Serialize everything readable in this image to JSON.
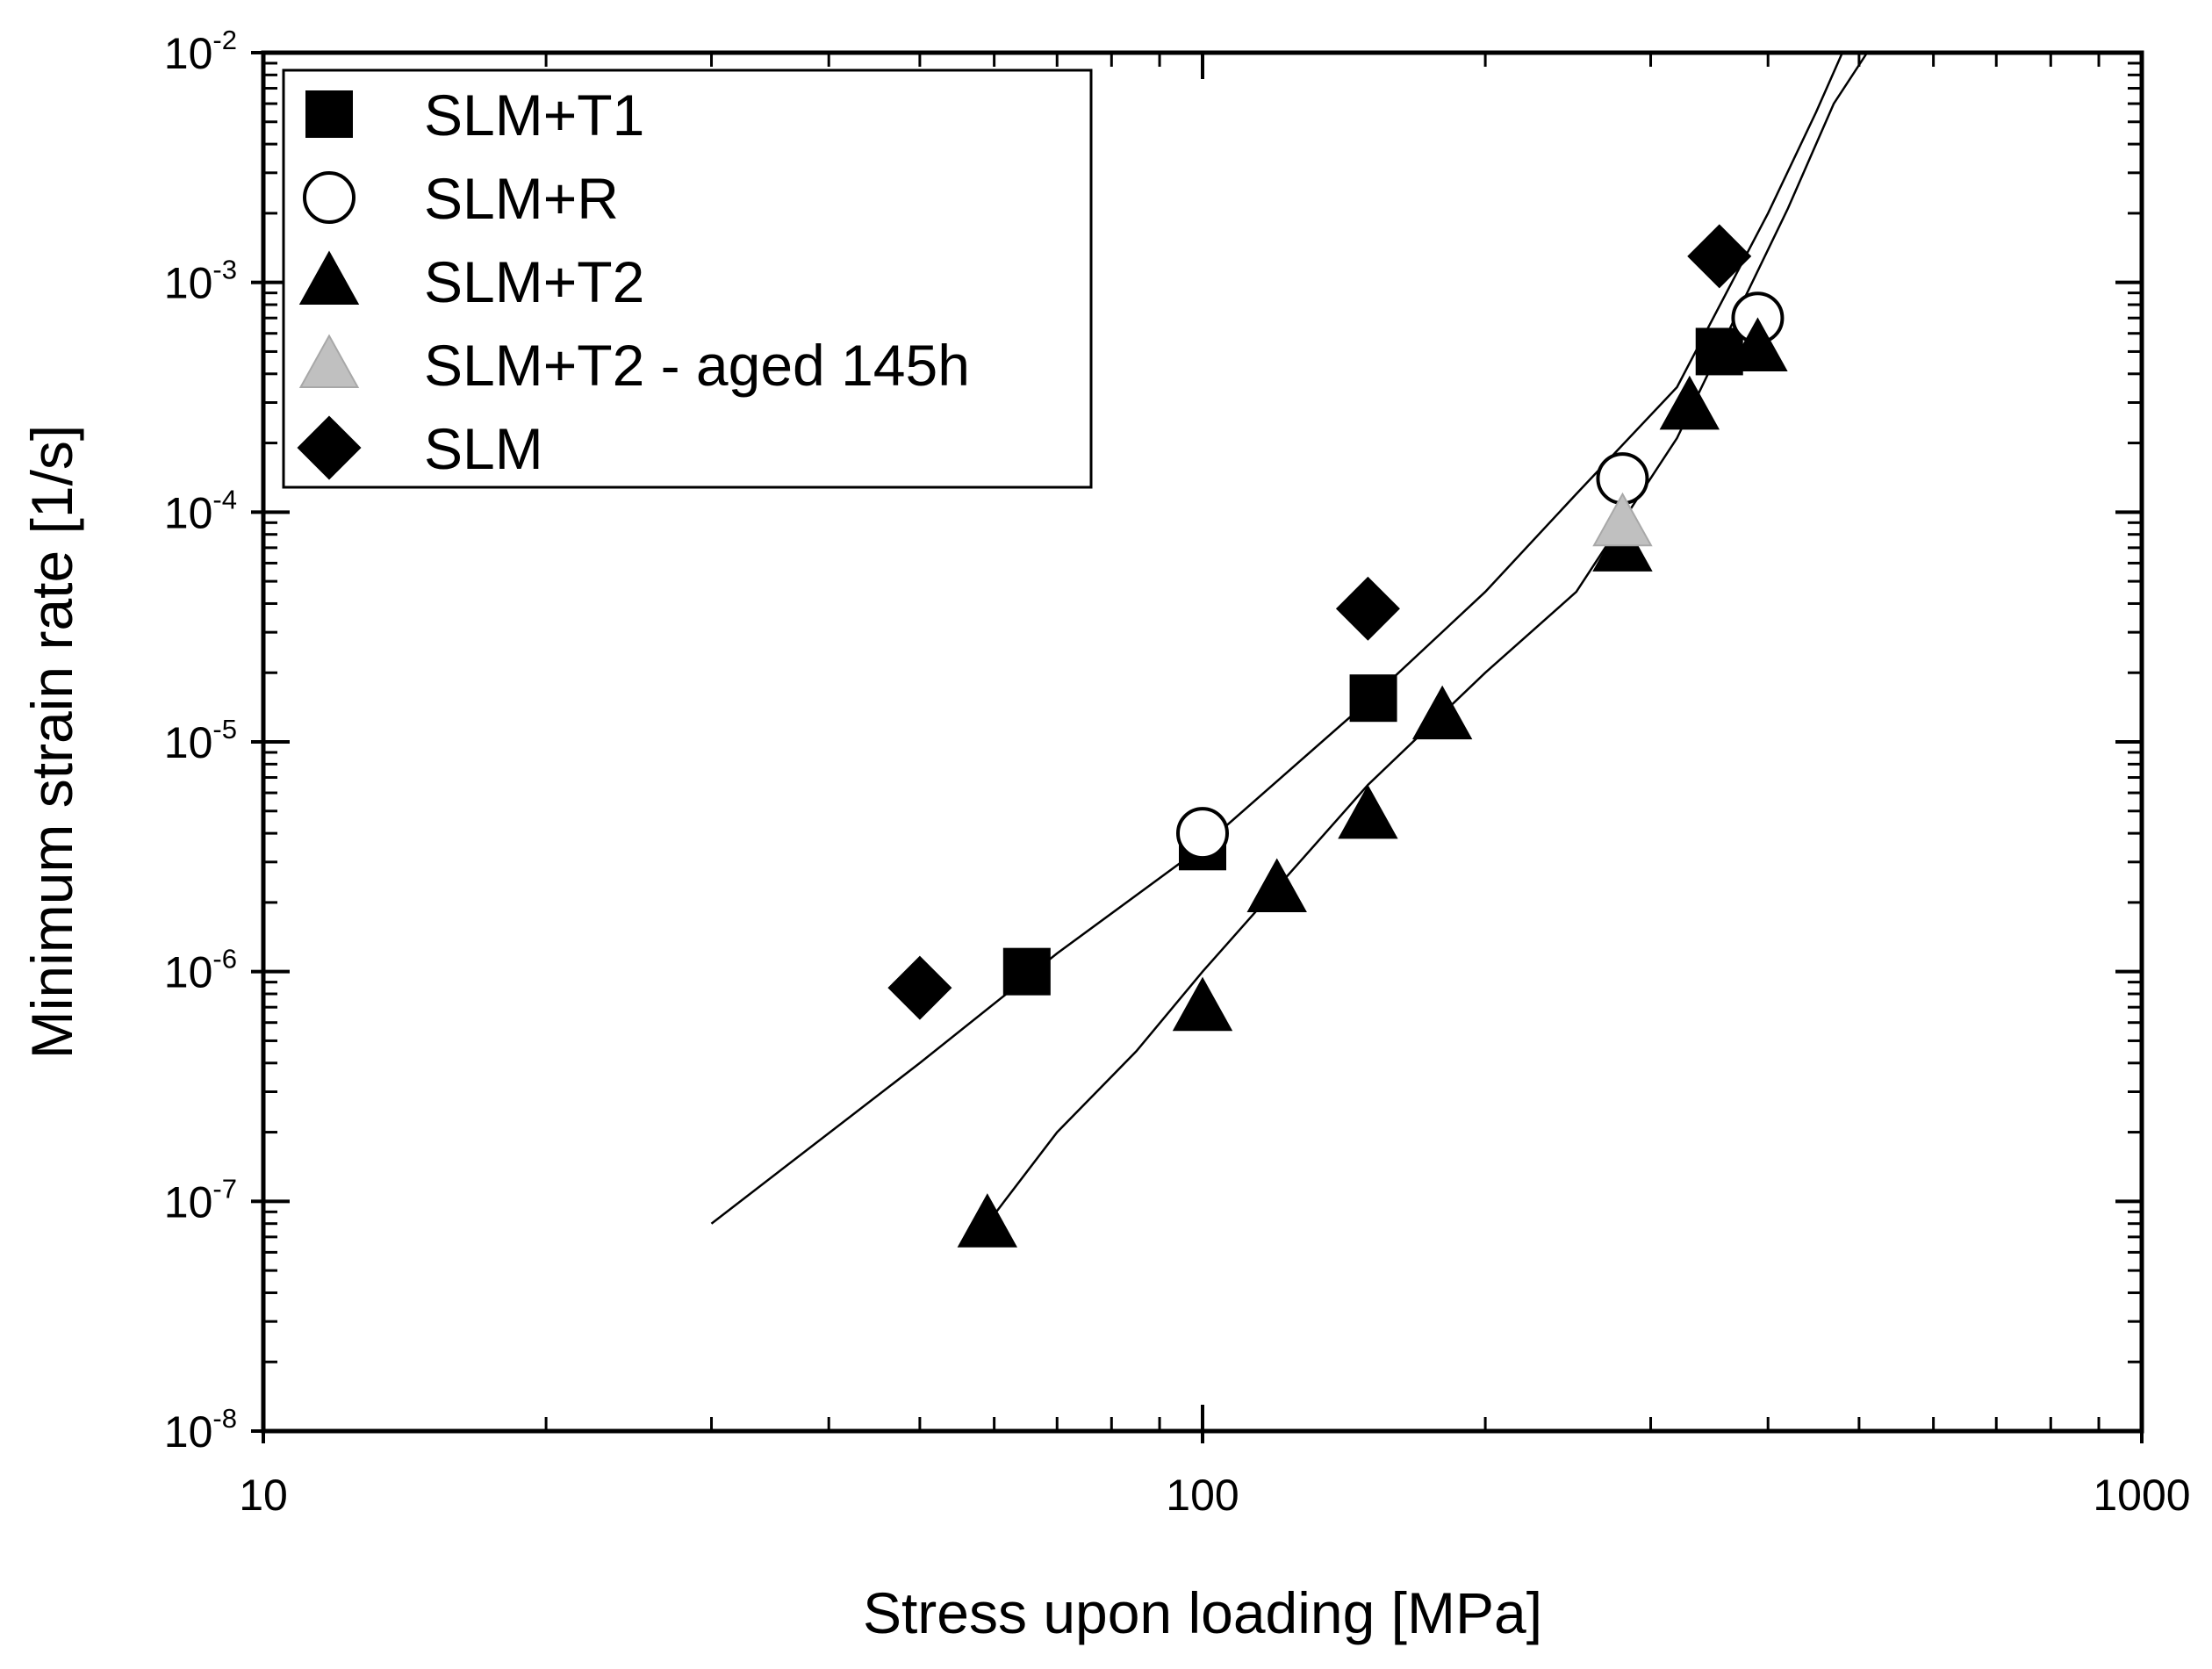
{
  "chart_data": {
    "type": "scatter",
    "title": "",
    "xlabel": "Stress upon loading [MPa]",
    "ylabel": "Minimum strain rate [1/s]",
    "xscale": "log",
    "yscale": "log",
    "xlim": [
      10,
      1000
    ],
    "ylim": [
      1e-08,
      0.01
    ],
    "grid": false,
    "legend_position": "top-left",
    "x_ticks": [
      {
        "value": 10,
        "label": "10"
      },
      {
        "value": 100,
        "label": "100"
      },
      {
        "value": 1000,
        "label": "1000"
      }
    ],
    "y_ticks": [
      {
        "value": 1e-08,
        "base": "10",
        "exp": "-8"
      },
      {
        "value": 1e-07,
        "base": "10",
        "exp": "-7"
      },
      {
        "value": 1e-06,
        "base": "10",
        "exp": "-6"
      },
      {
        "value": 1e-05,
        "base": "10",
        "exp": "-5"
      },
      {
        "value": 0.0001,
        "base": "10",
        "exp": "-4"
      },
      {
        "value": 0.001,
        "base": "10",
        "exp": "-3"
      },
      {
        "value": 0.01,
        "base": "10",
        "exp": "-2"
      }
    ],
    "series": [
      {
        "name": "SLM+T1",
        "marker": "square",
        "fill": "#000000",
        "stroke": "#000000",
        "points": [
          [
            65,
            1e-06
          ],
          [
            100,
            3.5e-06
          ],
          [
            152,
            1.55e-05
          ],
          [
            355,
            0.0005
          ]
        ]
      },
      {
        "name": "SLM+R",
        "marker": "circle",
        "fill": "#ffffff",
        "stroke": "#000000",
        "points": [
          [
            100,
            4e-06
          ],
          [
            280,
            0.00014
          ],
          [
            390,
            0.0007
          ]
        ]
      },
      {
        "name": "SLM+T2",
        "marker": "triangle",
        "fill": "#000000",
        "stroke": "#000000",
        "points": [
          [
            59,
            8e-08
          ],
          [
            100,
            7e-07
          ],
          [
            120,
            2.3e-06
          ],
          [
            150,
            4.8e-06
          ],
          [
            180,
            1.3e-05
          ],
          [
            280,
            7e-05
          ],
          [
            330,
            0.00029
          ],
          [
            390,
            0.00052
          ]
        ]
      },
      {
        "name": "SLM+T2 - aged 145h",
        "marker": "triangle",
        "fill": "#c0c0c0",
        "stroke": "#a8a8a8",
        "points": [
          [
            280,
            9e-05
          ]
        ]
      },
      {
        "name": "SLM",
        "marker": "diamond",
        "fill": "#000000",
        "stroke": "#000000",
        "points": [
          [
            50,
            8.5e-07
          ],
          [
            150,
            3.8e-05
          ],
          [
            355,
            0.0013
          ]
        ]
      }
    ],
    "fit_lines": [
      {
        "points": [
          [
            30,
            8e-08
          ],
          [
            50,
            4e-07
          ],
          [
            70,
            1.2e-06
          ],
          [
            100,
            3.5e-06
          ],
          [
            150,
            1.5e-05
          ],
          [
            200,
            4.5e-05
          ],
          [
            250,
            0.00012
          ],
          [
            320,
            0.00035
          ],
          [
            400,
            0.002
          ],
          [
            450,
            0.0055
          ],
          [
            480,
            0.01
          ]
        ]
      },
      {
        "points": [
          [
            59,
            8e-08
          ],
          [
            70,
            2e-07
          ],
          [
            85,
            4.5e-07
          ],
          [
            100,
            1e-06
          ],
          [
            150,
            6.5e-06
          ],
          [
            200,
            2e-05
          ],
          [
            250,
            4.5e-05
          ],
          [
            320,
            0.00021
          ],
          [
            420,
            0.0021
          ],
          [
            470,
            0.006
          ],
          [
            510,
            0.01
          ]
        ]
      }
    ]
  }
}
